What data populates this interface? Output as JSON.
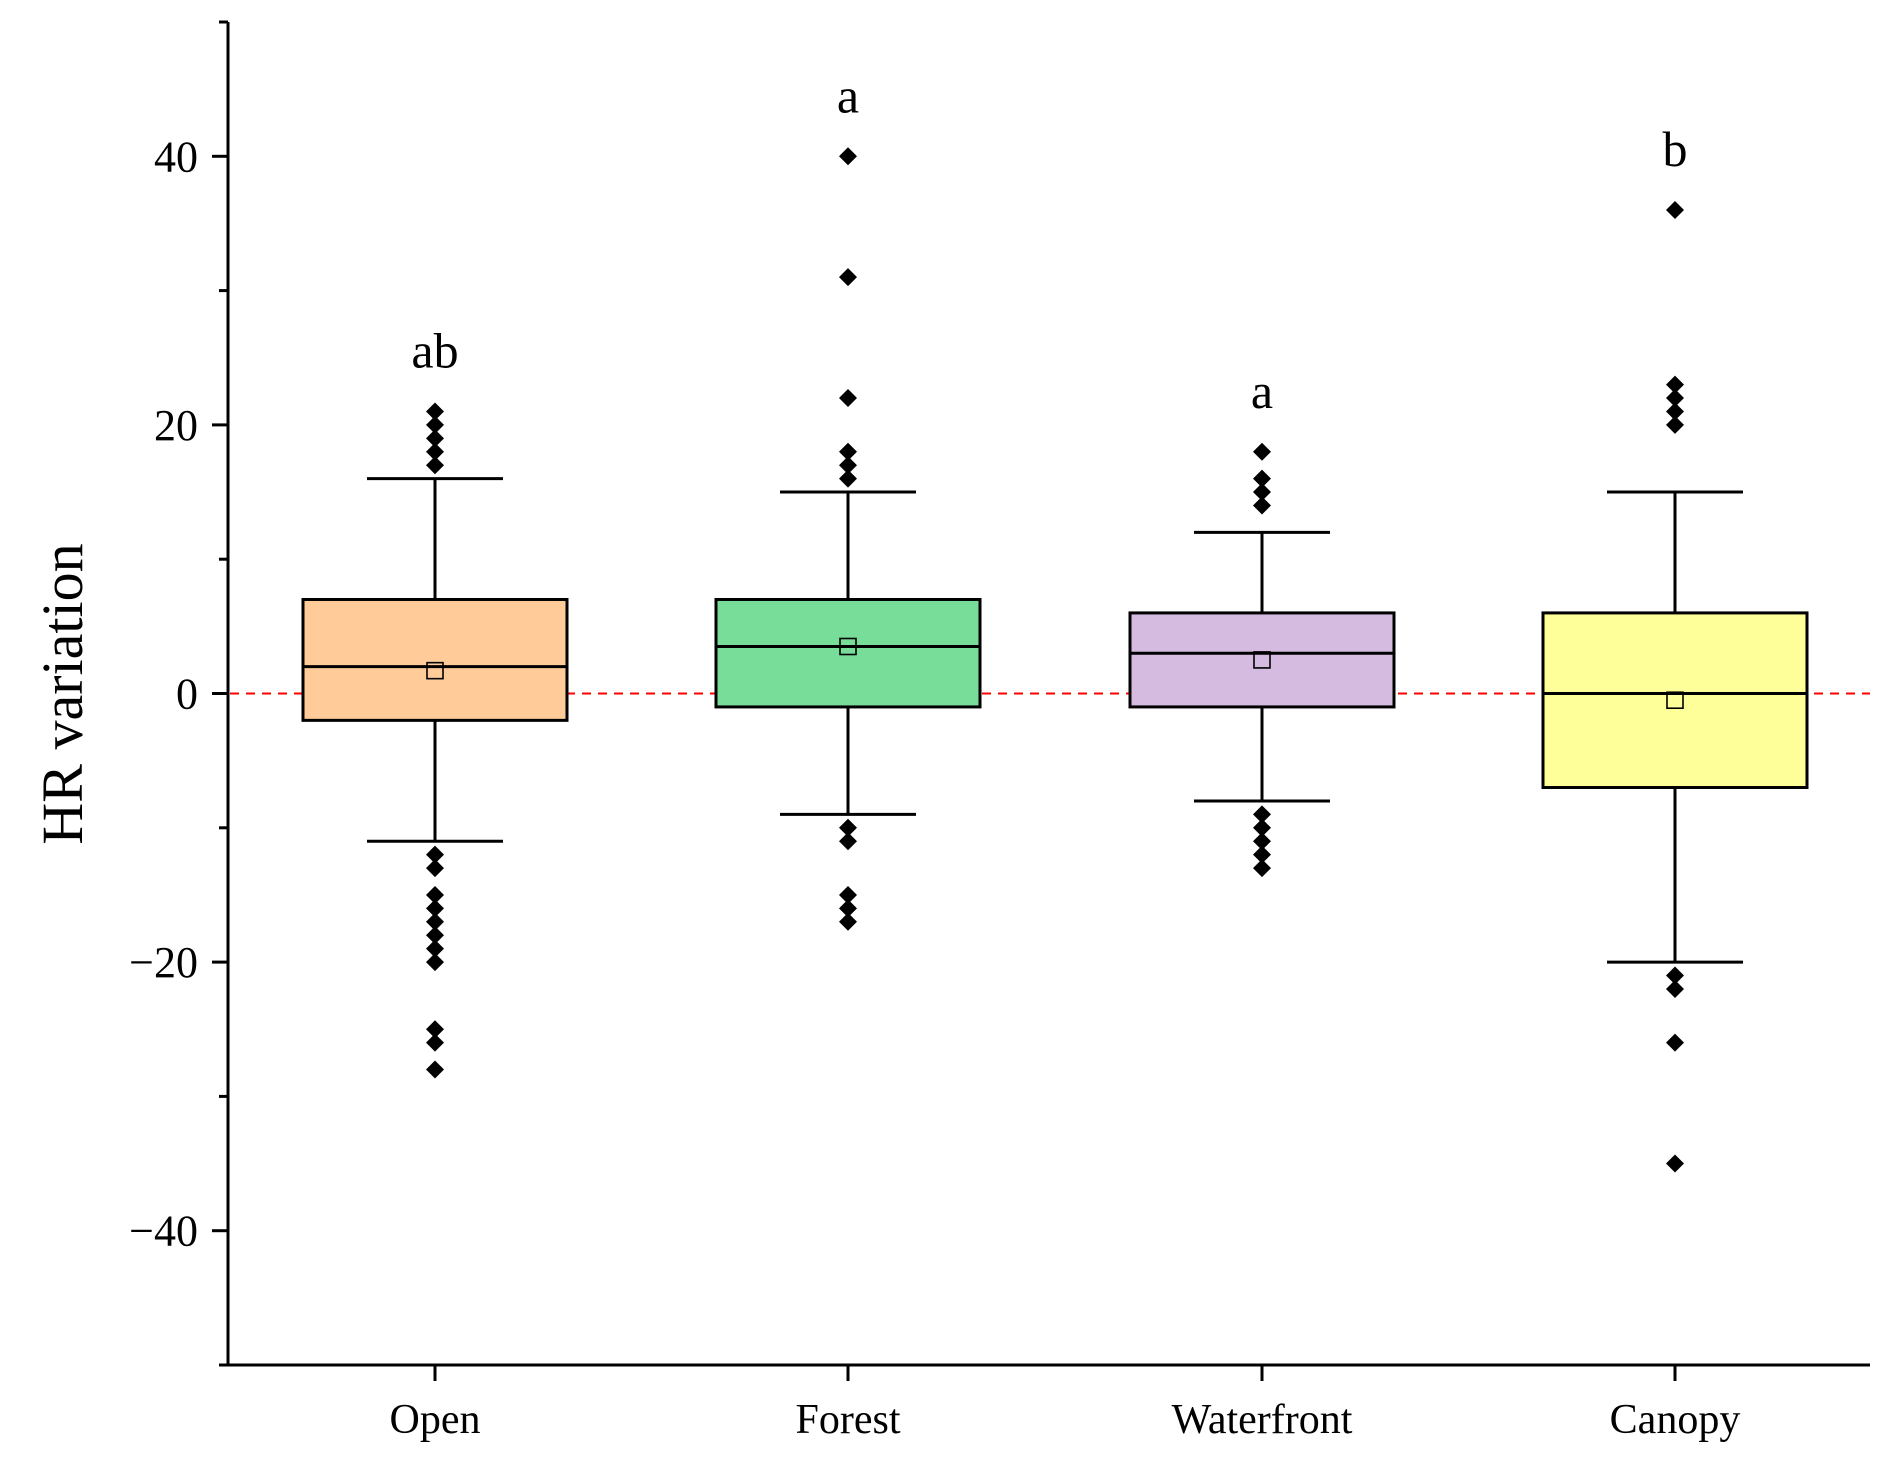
{
  "chart_data": {
    "type": "box",
    "title": "",
    "xlabel": "",
    "ylabel": "HR variation",
    "ylim": [
      -50,
      50
    ],
    "yticks": [
      -40,
      -20,
      0,
      20,
      40
    ],
    "ytick_labels": [
      "−40",
      "−20",
      "0",
      "20",
      "40"
    ],
    "reference_line": {
      "y": 0,
      "style": "dashed",
      "color": "#ff0000"
    },
    "categories": [
      "Open",
      "Forest",
      "Waterfront",
      "Canopy"
    ],
    "groups": [
      {
        "name": "Open",
        "color": "#FFCC99",
        "q1": -2,
        "median": 2,
        "q3": 7,
        "mean": 1.7,
        "whisker_low": -11,
        "whisker_high": 16,
        "outliers": [
          17,
          18,
          19,
          20,
          21,
          -12,
          -13,
          -15,
          -16,
          -17,
          -18,
          -19,
          -20,
          -25,
          -26,
          -28
        ],
        "letter": "ab"
      },
      {
        "name": "Forest",
        "color": "#77DD99",
        "q1": -1,
        "median": 3.5,
        "q3": 7,
        "mean": 3.5,
        "whisker_low": -9,
        "whisker_high": 15,
        "outliers": [
          16,
          17,
          18,
          22,
          31,
          40,
          -10,
          -11,
          -15,
          -16,
          -17
        ],
        "letter": "a"
      },
      {
        "name": "Waterfront",
        "color": "#D5BBDF",
        "q1": -1,
        "median": 3,
        "q3": 6,
        "mean": 2.5,
        "whisker_low": -8,
        "whisker_high": 12,
        "outliers": [
          14,
          15,
          16,
          18,
          -9,
          -10,
          -11,
          -12,
          -13
        ],
        "letter": "a"
      },
      {
        "name": "Canopy",
        "color": "#FFFF99",
        "q1": -7,
        "median": 0,
        "q3": 6,
        "mean": -0.5,
        "whisker_low": -20,
        "whisker_high": 15,
        "outliers": [
          20,
          21,
          22,
          23,
          36,
          -21,
          -22,
          -26,
          -35
        ],
        "letter": "b"
      }
    ]
  }
}
